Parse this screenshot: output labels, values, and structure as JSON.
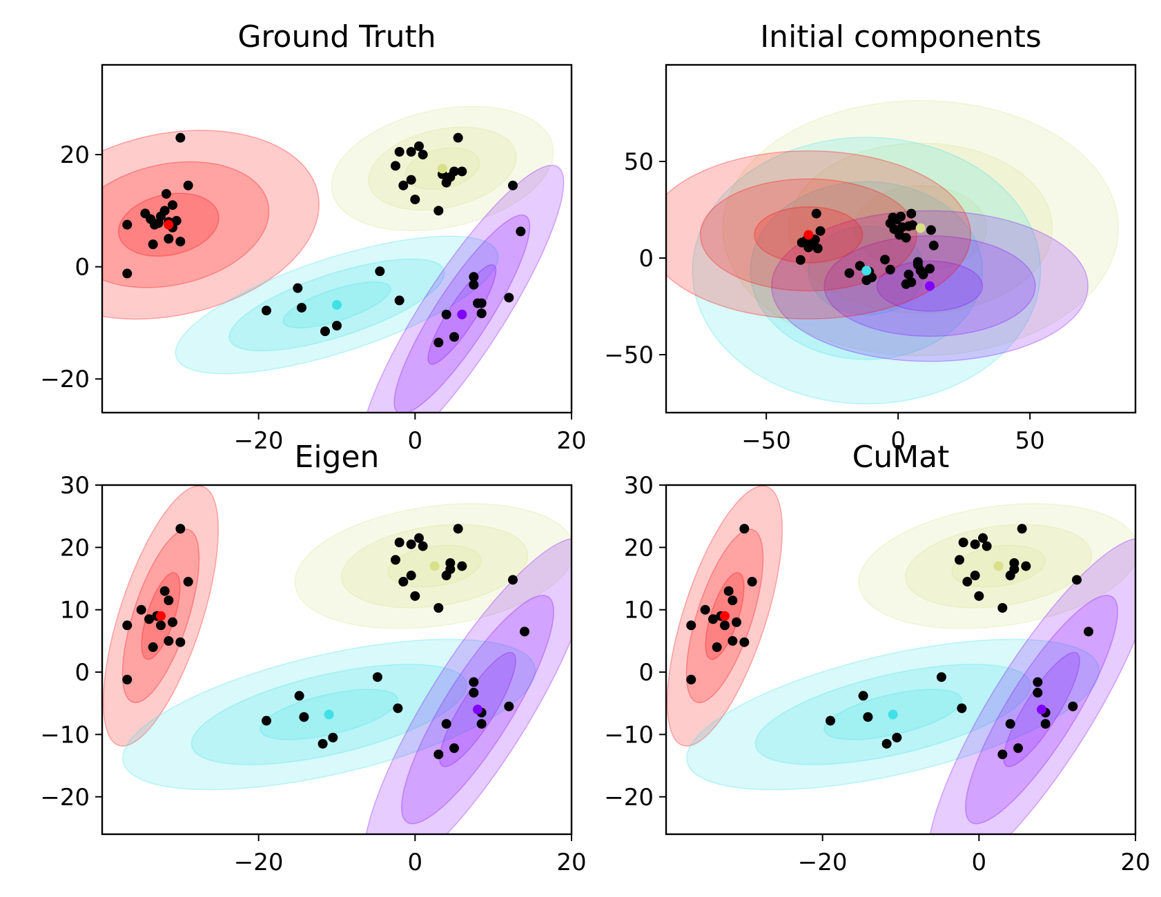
{
  "chart_data": [
    {
      "type": "scatter",
      "title": "Ground Truth",
      "xlim": [
        -40,
        20
      ],
      "ylim": [
        -26,
        36
      ],
      "xticks": [
        {
          "v": -20,
          "label": "−20"
        },
        {
          "v": 0,
          "label": "0"
        },
        {
          "v": 20,
          "label": "20"
        }
      ],
      "yticks": [
        {
          "v": -20,
          "label": "−20"
        },
        {
          "v": 0,
          "label": "0"
        },
        {
          "v": 20,
          "label": "20"
        }
      ],
      "points": [
        [
          -36.8,
          7.5
        ],
        [
          -36.8,
          -1.2
        ],
        [
          -34.5,
          9.5
        ],
        [
          -33.8,
          8.5
        ],
        [
          -33.3,
          7.5
        ],
        [
          -33.5,
          4.0
        ],
        [
          -32.8,
          7.8
        ],
        [
          -32.5,
          9.0
        ],
        [
          -32.0,
          10.0
        ],
        [
          -31.8,
          13.0
        ],
        [
          -31.5,
          8.0
        ],
        [
          -31.0,
          7.0
        ],
        [
          -31.5,
          5.0
        ],
        [
          -31.0,
          11.0
        ],
        [
          -30.5,
          8.2
        ],
        [
          -30.0,
          4.5
        ],
        [
          -30.0,
          23.0
        ],
        [
          -29.0,
          14.5
        ],
        [
          -19.0,
          -7.8
        ],
        [
          -15.0,
          -3.8
        ],
        [
          -14.5,
          -7.3
        ],
        [
          -11.5,
          -11.5
        ],
        [
          -10.0,
          -10.5
        ],
        [
          -4.5,
          -0.8
        ],
        [
          -2.0,
          -6.0
        ],
        [
          -2.5,
          18.0
        ],
        [
          -2.0,
          20.5
        ],
        [
          -1.5,
          14.5
        ],
        [
          -0.5,
          20.5
        ],
        [
          -0.5,
          15.5
        ],
        [
          0.0,
          12.0
        ],
        [
          0.5,
          21.5
        ],
        [
          1.0,
          20.0
        ],
        [
          3.0,
          10.0
        ],
        [
          3.5,
          16.5
        ],
        [
          4.0,
          15.0
        ],
        [
          4.5,
          16.0
        ],
        [
          5.5,
          23.0
        ],
        [
          5.0,
          17.0
        ],
        [
          6.0,
          17.0
        ],
        [
          12.5,
          14.5
        ],
        [
          13.5,
          6.3
        ],
        [
          3.0,
          -13.5
        ],
        [
          4.0,
          -8.5
        ],
        [
          5.0,
          -12.5
        ],
        [
          7.5,
          -1.8
        ],
        [
          7.5,
          -3.2
        ],
        [
          8.0,
          -6.5
        ],
        [
          8.5,
          -8.3
        ],
        [
          8.5,
          -6.5
        ],
        [
          12.0,
          -5.5
        ]
      ],
      "components": [
        {
          "color": "#ff0000",
          "mean": [
            -31.5,
            7.5
          ],
          "sx": 6.5,
          "sy": 5.4,
          "angle": 12
        },
        {
          "color": "#d8e08a",
          "mean": [
            3.5,
            17.5
          ],
          "sx": 4.8,
          "sy": 3.5,
          "angle": 12
        },
        {
          "color": "#40e0e8",
          "mean": [
            -10.0,
            -6.8
          ],
          "sx": 7.2,
          "sy": 2.8,
          "angle": 18
        },
        {
          "color": "#8000ff",
          "mean": [
            6.0,
            -8.5
          ],
          "sx": 7.5,
          "sy": 2.4,
          "angle": 57
        }
      ]
    },
    {
      "type": "scatter",
      "title": "Initial components",
      "xlim": [
        -88,
        90
      ],
      "ylim": [
        -80,
        100
      ],
      "xticks": [
        {
          "v": -50,
          "label": "−50"
        },
        {
          "v": 0,
          "label": "0"
        },
        {
          "v": 50,
          "label": "50"
        }
      ],
      "yticks": [
        {
          "v": -50,
          "label": "−50"
        },
        {
          "v": 0,
          "label": "0"
        },
        {
          "v": 50,
          "label": "50"
        }
      ],
      "points": [
        [
          -37.0,
          -1.0
        ],
        [
          -36.5,
          8.0
        ],
        [
          -35.0,
          9.0
        ],
        [
          -34.0,
          5.5
        ],
        [
          -33.0,
          10.0
        ],
        [
          -32.5,
          7.0
        ],
        [
          -31.5,
          9.5
        ],
        [
          -31.0,
          23.0
        ],
        [
          -30.5,
          5.0
        ],
        [
          -29.5,
          14.0
        ],
        [
          -18.5,
          -7.8
        ],
        [
          -14.5,
          -4.0
        ],
        [
          -12.0,
          -11.5
        ],
        [
          -11.0,
          -7.0
        ],
        [
          -10.0,
          -10.0
        ],
        [
          -5.0,
          -0.8
        ],
        [
          -3.0,
          -6.0
        ],
        [
          -3.0,
          18.0
        ],
        [
          -2.0,
          21.0
        ],
        [
          -1.5,
          15.0
        ],
        [
          -0.5,
          20.0
        ],
        [
          0.5,
          12.0
        ],
        [
          1.0,
          21.5
        ],
        [
          1.5,
          16.0
        ],
        [
          3.0,
          10.5
        ],
        [
          4.0,
          16.5
        ],
        [
          5.0,
          23.0
        ],
        [
          5.5,
          17.0
        ],
        [
          3.0,
          -13.5
        ],
        [
          4.0,
          -8.5
        ],
        [
          5.0,
          -12.5
        ],
        [
          7.5,
          -2.0
        ],
        [
          7.5,
          -3.5
        ],
        [
          8.5,
          -6.5
        ],
        [
          9.5,
          -8.5
        ],
        [
          12.5,
          14.5
        ],
        [
          12.0,
          -5.5
        ],
        [
          13.5,
          6.5
        ]
      ],
      "components": [
        {
          "color": "#d8e08a",
          "mean": [
            8.5,
            15.5
          ],
          "sx": 25.0,
          "sy": 22.0,
          "angle": 0
        },
        {
          "color": "#40e0e8",
          "mean": [
            -12.0,
            -6.5
          ],
          "sx": 22.0,
          "sy": 23.0,
          "angle": 0
        },
        {
          "color": "#8000ff",
          "mean": [
            12.0,
            -14.5
          ],
          "sx": 20.0,
          "sy": 13.0,
          "angle": 0
        },
        {
          "color": "#ff0000",
          "mean": [
            -34.0,
            12.0
          ],
          "sx": 20.5,
          "sy": 14.5,
          "angle": 0
        }
      ]
    },
    {
      "type": "scatter",
      "title": "Eigen",
      "xlim": [
        -40,
        20
      ],
      "ylim": [
        -26,
        30
      ],
      "xticks": [
        {
          "v": -20,
          "label": "−20"
        },
        {
          "v": 0,
          "label": "0"
        },
        {
          "v": 20,
          "label": "20"
        }
      ],
      "yticks": [
        {
          "v": -20,
          "label": "−20"
        },
        {
          "v": -10,
          "label": "−10"
        },
        {
          "v": 0,
          "label": "0"
        },
        {
          "v": 10,
          "label": "10"
        },
        {
          "v": 20,
          "label": "20"
        },
        {
          "v": 30,
          "label": "30"
        }
      ],
      "points": [
        [
          -36.8,
          7.5
        ],
        [
          -36.8,
          -1.2
        ],
        [
          -35.0,
          10.0
        ],
        [
          -34.0,
          8.5
        ],
        [
          -33.5,
          4.0
        ],
        [
          -33.0,
          9.0
        ],
        [
          -32.5,
          7.5
        ],
        [
          -32.0,
          13.0
        ],
        [
          -31.5,
          11.5
        ],
        [
          -31.5,
          5.0
        ],
        [
          -31.0,
          8.0
        ],
        [
          -30.0,
          23.0
        ],
        [
          -30.0,
          4.8
        ],
        [
          -29.0,
          14.5
        ],
        [
          -19.0,
          -7.8
        ],
        [
          -14.8,
          -3.8
        ],
        [
          -14.2,
          -7.2
        ],
        [
          -11.8,
          -11.5
        ],
        [
          -10.5,
          -10.5
        ],
        [
          -4.8,
          -0.8
        ],
        [
          -2.2,
          -5.8
        ],
        [
          -2.5,
          18.0
        ],
        [
          -2.0,
          20.8
        ],
        [
          -1.5,
          14.5
        ],
        [
          -0.5,
          20.5
        ],
        [
          -0.5,
          15.5
        ],
        [
          0.0,
          12.2
        ],
        [
          0.5,
          21.5
        ],
        [
          1.0,
          20.2
        ],
        [
          3.0,
          10.3
        ],
        [
          4.0,
          15.5
        ],
        [
          4.5,
          17.5
        ],
        [
          4.5,
          16.5
        ],
        [
          5.5,
          23.0
        ],
        [
          6.0,
          17.0
        ],
        [
          12.5,
          14.8
        ],
        [
          14.0,
          6.5
        ],
        [
          3.0,
          -13.2
        ],
        [
          4.0,
          -8.3
        ],
        [
          5.0,
          -12.2
        ],
        [
          7.5,
          -1.6
        ],
        [
          7.5,
          -3.3
        ],
        [
          8.5,
          -6.5
        ],
        [
          8.5,
          -8.3
        ],
        [
          12.0,
          -5.5
        ]
      ],
      "components": [
        {
          "color": "#ff0000",
          "mean": [
            -32.5,
            9.0
          ],
          "sx": 5.8,
          "sy": 2.2,
          "angle": 72
        },
        {
          "color": "#d8e08a",
          "mean": [
            2.5,
            17.0
          ],
          "sx": 6.0,
          "sy": 3.2,
          "angle": 8
        },
        {
          "color": "#40e0e8",
          "mean": [
            -11.0,
            -6.8
          ],
          "sx": 9.0,
          "sy": 3.2,
          "angle": 13
        },
        {
          "color": "#8000ff",
          "mean": [
            8.0,
            -6.0
          ],
          "sx": 8.5,
          "sy": 2.7,
          "angle": 58
        }
      ]
    },
    {
      "type": "scatter",
      "title": "CuMat",
      "xlim": [
        -40,
        20
      ],
      "ylim": [
        -26,
        30
      ],
      "xticks": [
        {
          "v": -20,
          "label": "−20"
        },
        {
          "v": 0,
          "label": "0"
        },
        {
          "v": 20,
          "label": "20"
        }
      ],
      "yticks": [
        {
          "v": -20,
          "label": "−20"
        },
        {
          "v": -10,
          "label": "−10"
        },
        {
          "v": 0,
          "label": "0"
        },
        {
          "v": 10,
          "label": "10"
        },
        {
          "v": 20,
          "label": "20"
        },
        {
          "v": 30,
          "label": "30"
        }
      ],
      "points": [
        [
          -36.8,
          7.5
        ],
        [
          -36.8,
          -1.2
        ],
        [
          -35.0,
          10.0
        ],
        [
          -34.0,
          8.5
        ],
        [
          -33.5,
          4.0
        ],
        [
          -33.0,
          9.0
        ],
        [
          -32.5,
          7.5
        ],
        [
          -32.0,
          13.0
        ],
        [
          -31.5,
          11.5
        ],
        [
          -31.5,
          5.0
        ],
        [
          -31.0,
          8.0
        ],
        [
          -30.0,
          23.0
        ],
        [
          -30.0,
          4.8
        ],
        [
          -29.0,
          14.5
        ],
        [
          -19.0,
          -7.8
        ],
        [
          -14.8,
          -3.8
        ],
        [
          -14.2,
          -7.2
        ],
        [
          -11.8,
          -11.5
        ],
        [
          -10.5,
          -10.5
        ],
        [
          -4.8,
          -0.8
        ],
        [
          -2.2,
          -5.8
        ],
        [
          -2.5,
          18.0
        ],
        [
          -2.0,
          20.8
        ],
        [
          -1.5,
          14.5
        ],
        [
          -0.5,
          20.5
        ],
        [
          -0.5,
          15.5
        ],
        [
          0.0,
          12.2
        ],
        [
          0.5,
          21.5
        ],
        [
          1.0,
          20.2
        ],
        [
          3.0,
          10.3
        ],
        [
          4.0,
          15.5
        ],
        [
          4.5,
          17.5
        ],
        [
          4.5,
          16.5
        ],
        [
          5.5,
          23.0
        ],
        [
          6.0,
          17.0
        ],
        [
          12.5,
          14.8
        ],
        [
          14.0,
          6.5
        ],
        [
          3.0,
          -13.2
        ],
        [
          4.0,
          -8.3
        ],
        [
          5.0,
          -12.2
        ],
        [
          7.5,
          -1.6
        ],
        [
          7.5,
          -3.3
        ],
        [
          8.5,
          -6.5
        ],
        [
          8.5,
          -8.3
        ],
        [
          12.0,
          -5.5
        ]
      ],
      "components": [
        {
          "color": "#ff0000",
          "mean": [
            -32.5,
            9.0
          ],
          "sx": 5.8,
          "sy": 2.2,
          "angle": 72
        },
        {
          "color": "#d8e08a",
          "mean": [
            2.5,
            17.0
          ],
          "sx": 6.0,
          "sy": 3.2,
          "angle": 8
        },
        {
          "color": "#40e0e8",
          "mean": [
            -11.0,
            -6.8
          ],
          "sx": 9.0,
          "sy": 3.2,
          "angle": 13
        },
        {
          "color": "#8000ff",
          "mean": [
            8.0,
            -6.0
          ],
          "sx": 8.5,
          "sy": 2.7,
          "angle": 58
        }
      ]
    }
  ]
}
